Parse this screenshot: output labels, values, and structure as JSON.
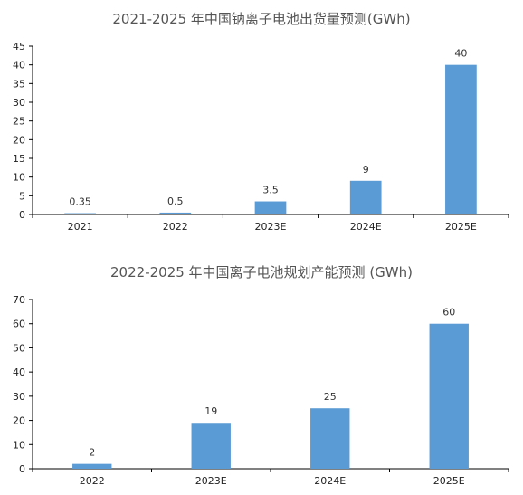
{
  "colors": {
    "bar": "#5b9bd5",
    "axis": "#000000"
  },
  "chart_data": [
    {
      "type": "bar",
      "title": "2021-2025 年中国钠离子电池出货量预测(GWh)",
      "categories": [
        "2021",
        "2022",
        "2023E",
        "2024E",
        "2025E"
      ],
      "values": [
        0.35,
        0.5,
        3.5,
        9,
        40
      ],
      "value_labels": [
        "0.35",
        "0.5",
        "3.5",
        "9",
        "40"
      ],
      "yticks": [
        0,
        5,
        10,
        15,
        20,
        25,
        30,
        35,
        40,
        45
      ],
      "ylim": [
        0,
        45
      ],
      "grid": false,
      "legend": "none"
    },
    {
      "type": "bar",
      "title": "2022-2025 年中国离子电池规划产能预测 (GWh)",
      "categories": [
        "2022",
        "2023E",
        "2024E",
        "2025E"
      ],
      "values": [
        2,
        19,
        25,
        60
      ],
      "value_labels": [
        "2",
        "19",
        "25",
        "60"
      ],
      "yticks": [
        0,
        10,
        20,
        30,
        40,
        50,
        60,
        70
      ],
      "ylim": [
        0,
        70
      ],
      "grid": false,
      "legend": "none"
    }
  ]
}
